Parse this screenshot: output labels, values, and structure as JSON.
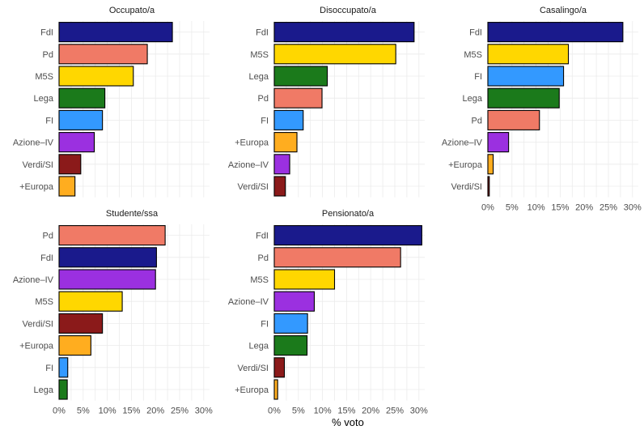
{
  "chart_data": {
    "type": "bar",
    "orientation": "horizontal",
    "xlabel": "% voto",
    "ticks": [
      "0%",
      "5%",
      "10%",
      "15%",
      "20%",
      "25%",
      "30%"
    ],
    "xlim": [
      0,
      31
    ],
    "grid": true,
    "colors": {
      "FdI": "#1a1a8c",
      "Pd": "#f07a66",
      "M5S": "#ffd700",
      "Lega": "#1b7a1b",
      "FI": "#3399ff",
      "Azione–IV": "#9b30e0",
      "Verdi/SI": "#8b1a1a",
      "+Europa": "#ffad1f"
    },
    "panels": [
      {
        "title": "Occupato/a",
        "categories": [
          "FdI",
          "Pd",
          "M5S",
          "Lega",
          "FI",
          "Azione–IV",
          "Verdi/SI",
          "+Europa"
        ],
        "values": [
          23.5,
          18.3,
          15.4,
          9.5,
          9.0,
          7.3,
          4.5,
          3.3
        ]
      },
      {
        "title": "Disoccupato/a",
        "categories": [
          "FdI",
          "M5S",
          "Lega",
          "Pd",
          "FI",
          "+Europa",
          "Azione–IV",
          "Verdi/SI"
        ],
        "values": [
          29.0,
          25.2,
          11.0,
          9.9,
          6.0,
          4.7,
          3.2,
          2.3
        ]
      },
      {
        "title": "Casalingo/a",
        "categories": [
          "FdI",
          "M5S",
          "FI",
          "Lega",
          "Pd",
          "Azione–IV",
          "+Europa",
          "Verdi/SI"
        ],
        "values": [
          28.0,
          16.7,
          15.7,
          14.8,
          10.7,
          4.3,
          1.1,
          0.3
        ]
      },
      {
        "title": "Studente/ssa",
        "categories": [
          "Pd",
          "FdI",
          "Azione–IV",
          "M5S",
          "Verdi/SI",
          "+Europa",
          "FI",
          "Lega"
        ],
        "values": [
          22.0,
          20.2,
          20.0,
          13.1,
          9.0,
          6.6,
          1.8,
          1.7
        ]
      },
      {
        "title": "Pensionato/a",
        "categories": [
          "FdI",
          "Pd",
          "M5S",
          "Azione–IV",
          "FI",
          "Lega",
          "Verdi/SI",
          "+Europa"
        ],
        "values": [
          30.6,
          26.2,
          12.5,
          8.3,
          6.9,
          6.8,
          2.1,
          0.7
        ]
      }
    ]
  }
}
